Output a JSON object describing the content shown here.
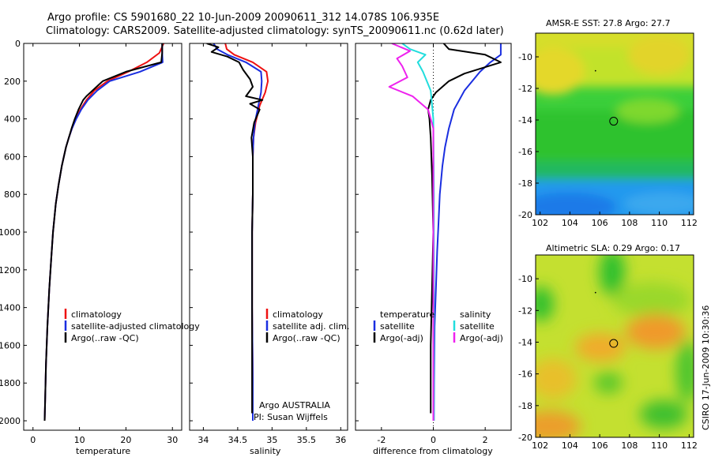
{
  "figure": {
    "title_line1": "Argo profile: CS 5901680_22 10-Jun-2009 20090611_312 14.078S 106.935E",
    "title_line2": "Climatology: CARS2009. Satellite-adjusted climatology: synTS_20090611.nc (0.62d later)",
    "credit": "CSIRO 17-Jun-2009 10:30:36",
    "argo_country": "Argo AUSTRALIA",
    "pi": "PI: Susan Wijffels"
  },
  "colors": {
    "climatology": "#ee1111",
    "satellite": "#1a2ee0",
    "argo": "#000000",
    "salinity_satellite": "#22dddd",
    "salinity_argo": "#ee22ee"
  },
  "chart_data": [
    {
      "type": "line",
      "id": "temperature",
      "xlabel": "temperature",
      "ylabel": "",
      "xlim": [
        -2,
        32
      ],
      "ylim": [
        2050,
        0
      ],
      "xticks": [
        0,
        10,
        20,
        30
      ],
      "yticks": [
        0,
        200,
        400,
        600,
        800,
        1000,
        1200,
        1400,
        1600,
        1800,
        2000
      ],
      "legend_placement": "lower-right",
      "legend": [
        "climatology",
        "satellite-adjusted climatology",
        "Argo(..raw -QC)"
      ],
      "series": [
        {
          "name": "climatology",
          "x": [
            28.1,
            27.2,
            24.5,
            20.5,
            16,
            13.2,
            11.5,
            10.2,
            9.2,
            8.4,
            7.7,
            7.1,
            6.2,
            5.5,
            4.9,
            4.3,
            3.9,
            3.5,
            3.1,
            2.8,
            2.6,
            2.5
          ],
          "y": [
            0,
            50,
            100,
            150,
            200,
            250,
            300,
            350,
            400,
            450,
            500,
            550,
            650,
            750,
            850,
            1000,
            1150,
            1300,
            1500,
            1700,
            1900,
            2000
          ]
        },
        {
          "name": "satellite-adjusted climatology",
          "x": [
            27.8,
            27.8,
            27.9,
            23,
            16.5,
            13.8,
            11.8,
            10.4,
            9.3,
            8.4,
            7.7,
            7.1,
            6.2,
            5.5,
            4.9,
            4.3,
            3.9,
            3.5,
            3.1,
            2.8,
            2.6,
            2.5
          ],
          "y": [
            0,
            50,
            100,
            150,
            200,
            250,
            300,
            350,
            400,
            450,
            500,
            550,
            650,
            750,
            850,
            1000,
            1150,
            1300,
            1500,
            1700,
            1900,
            2000
          ]
        },
        {
          "name": "Argo(..raw -QC)",
          "x": [
            27.8,
            27.8,
            27.6,
            20,
            15,
            11.5,
            10.8,
            9.8,
            9.0,
            8.3,
            7.7,
            7.1,
            6.2,
            5.5,
            4.9,
            4.3,
            3.9,
            3.5,
            3.1,
            2.8,
            2.6,
            2.5
          ],
          "y": [
            0,
            50,
            100,
            150,
            200,
            280,
            300,
            350,
            400,
            450,
            500,
            550,
            650,
            750,
            850,
            1000,
            1150,
            1300,
            1500,
            1700,
            1900,
            2000
          ]
        }
      ]
    },
    {
      "type": "line",
      "id": "salinity",
      "xlabel": "salinity",
      "ylabel": "",
      "xlim": [
        33.8,
        36.1
      ],
      "ylim": [
        2050,
        0
      ],
      "xticks": [
        34,
        34.5,
        35,
        35.5,
        36
      ],
      "xtick_labels": [
        "34",
        "34.5",
        "35",
        "35.5",
        "36"
      ],
      "legend_placement": "lower-right",
      "legend": [
        "climatology",
        "satellite adj. clim.",
        "Argo(..raw -QC)"
      ],
      "series": [
        {
          "name": "climatology",
          "x": [
            34.32,
            34.34,
            34.45,
            34.72,
            34.92,
            34.94,
            34.9,
            34.82,
            34.76,
            34.73,
            34.72,
            34.72,
            34.71,
            34.71,
            34.72,
            34.72
          ],
          "y": [
            0,
            30,
            60,
            100,
            150,
            200,
            260,
            330,
            420,
            500,
            600,
            800,
            1000,
            1400,
            1800,
            2000
          ]
        },
        {
          "name": "satellite adj. clim.",
          "x": [
            34.15,
            34.2,
            34.35,
            34.62,
            34.84,
            34.85,
            34.84,
            34.8,
            34.75,
            34.73,
            34.72,
            34.72,
            34.71,
            34.71,
            34.72,
            34.72
          ],
          "y": [
            0,
            30,
            60,
            100,
            150,
            200,
            260,
            330,
            420,
            500,
            600,
            800,
            1000,
            1400,
            1800,
            2000
          ]
        },
        {
          "name": "Argo(..raw -QC)",
          "x": [
            34.05,
            34.22,
            34.12,
            34.35,
            34.52,
            34.58,
            34.68,
            34.72,
            34.62,
            34.86,
            34.68,
            34.82,
            34.74,
            34.7,
            34.72,
            34.72,
            34.71,
            34.71,
            34.71
          ],
          "y": [
            0,
            20,
            45,
            70,
            100,
            140,
            190,
            230,
            280,
            300,
            320,
            350,
            420,
            500,
            600,
            800,
            1000,
            1400,
            1960
          ]
        }
      ]
    },
    {
      "type": "line",
      "id": "difference",
      "xlabel": "difference from climatology",
      "ylabel": "",
      "xlim": [
        -3,
        3
      ],
      "ylim": [
        2050,
        0
      ],
      "xticks": [
        -2,
        0,
        2
      ],
      "legend_placement": "lower",
      "legend_groups": [
        {
          "title": "temperature",
          "entries": [
            "satellite",
            "Argo(-adj)"
          ]
        },
        {
          "title": "salinity",
          "entries": [
            "satellite",
            "Argo(-adj)"
          ]
        }
      ],
      "series": [
        {
          "name": "temperature satellite",
          "x": [
            2.6,
            2.6,
            2.2,
            1.8,
            1.2,
            0.8,
            0.6,
            0.45,
            0.35,
            0.25,
            0.2,
            0.15,
            0.1,
            0.05,
            0.03,
            0.02
          ],
          "y": [
            0,
            60,
            100,
            150,
            250,
            350,
            450,
            550,
            650,
            800,
            950,
            1100,
            1300,
            1500,
            1800,
            2000
          ]
        },
        {
          "name": "temperature Argo(-adj)",
          "x": [
            0.4,
            0.6,
            2.0,
            2.6,
            1.2,
            0.6,
            0.1,
            -0.1,
            -0.2,
            -0.15,
            -0.1,
            -0.05,
            0.0,
            -0.05,
            -0.1,
            -0.1
          ],
          "y": [
            0,
            30,
            60,
            100,
            160,
            200,
            260,
            300,
            350,
            400,
            500,
            700,
            1000,
            1300,
            1600,
            1960
          ]
        },
        {
          "name": "salinity satellite",
          "x": [
            -1.2,
            -0.9,
            -0.3,
            -0.6,
            -0.4,
            -0.1,
            0.0,
            0.02,
            0.02
          ],
          "y": [
            0,
            30,
            60,
            100,
            150,
            250,
            400,
            800,
            2000
          ]
        },
        {
          "name": "salinity Argo(-adj)",
          "x": [
            -1.6,
            -0.9,
            -1.4,
            -1.2,
            -1.0,
            -1.7,
            -0.8,
            -0.2,
            0.0,
            0.0
          ],
          "y": [
            0,
            40,
            80,
            120,
            180,
            230,
            280,
            350,
            450,
            2000
          ]
        }
      ]
    },
    {
      "type": "heatmap",
      "id": "sst_map",
      "title": "AMSR-E SST: 27.8 Argo: 27.7",
      "xlim": [
        101.7,
        112.3
      ],
      "ylim": [
        -20,
        -8.5
      ],
      "xticks": [
        102,
        104,
        106,
        108,
        110,
        112
      ],
      "yticks": [
        -10,
        -12,
        -14,
        -16,
        -18,
        -20
      ],
      "marker": {
        "lon": 106.935,
        "lat": -14.078
      }
    },
    {
      "type": "heatmap",
      "id": "sla_map",
      "title": "Altimetric SLA: 0.29 Argo: 0.17",
      "xlim": [
        101.7,
        112.3
      ],
      "ylim": [
        -20,
        -8.5
      ],
      "xticks": [
        102,
        104,
        106,
        108,
        110,
        112
      ],
      "yticks": [
        -10,
        -12,
        -14,
        -16,
        -18,
        -20
      ],
      "marker": {
        "lon": 106.935,
        "lat": -14.078
      }
    }
  ]
}
